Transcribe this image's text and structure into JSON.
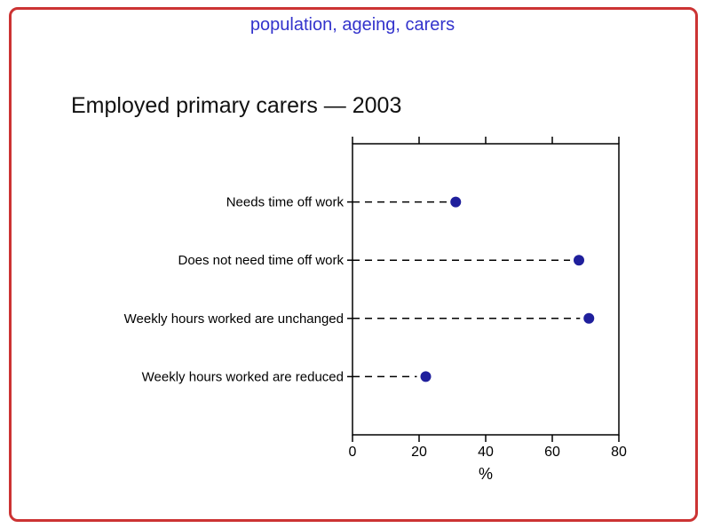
{
  "slide": {
    "title": "population, ageing, carers",
    "heading": "Employed primary carers — 2003"
  },
  "colors": {
    "border": "#cc3333",
    "title_text": "#3333cc",
    "dot": "#1f1f9c",
    "axis": "#000000"
  },
  "chart_data": {
    "type": "scatter",
    "subtype": "horizontal-dot-plot",
    "title": "Employed primary carers — 2003",
    "categories": [
      "Needs time off work",
      "Does not need time off work",
      "Weekly hours worked are unchanged",
      "Weekly hours worked are reduced"
    ],
    "values": [
      31,
      68,
      71,
      22
    ],
    "xlabel": "%",
    "ylabel": "",
    "xlim": [
      0,
      80
    ],
    "xticks": [
      0,
      20,
      40,
      60,
      80
    ],
    "grid": false,
    "legend": "none",
    "leader_line_style": "dashed",
    "marker": "filled-circle"
  }
}
